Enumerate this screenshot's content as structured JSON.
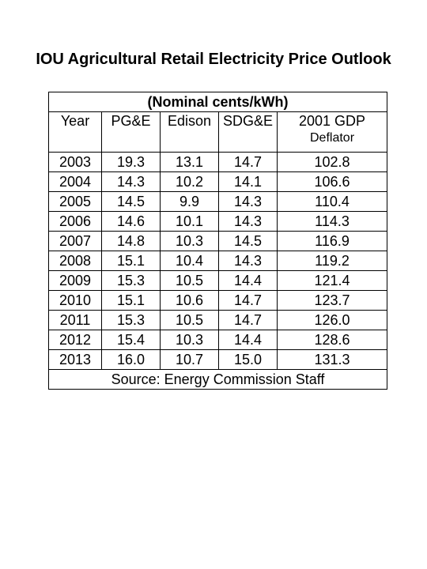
{
  "title": "IOU Agricultural Retail Electricity Price Outlook",
  "table": {
    "units": "(Nominal cents/kWh)",
    "headers": {
      "year": "Year",
      "pge": "PG&E",
      "edison": "Edison",
      "sdge": "SDG&E",
      "deflator_line1": "2001 GDP",
      "deflator_line2": "Deflator"
    },
    "rows": [
      {
        "year": "2003",
        "pge": "19.3",
        "edison": "13.1",
        "sdge": "14.7",
        "deflator": "102.8"
      },
      {
        "year": "2004",
        "pge": "14.3",
        "edison": "10.2",
        "sdge": "14.1",
        "deflator": "106.6"
      },
      {
        "year": "2005",
        "pge": "14.5",
        "edison": "9.9",
        "sdge": "14.3",
        "deflator": "110.4"
      },
      {
        "year": "2006",
        "pge": "14.6",
        "edison": "10.1",
        "sdge": "14.3",
        "deflator": "114.3"
      },
      {
        "year": "2007",
        "pge": "14.8",
        "edison": "10.3",
        "sdge": "14.5",
        "deflator": "116.9"
      },
      {
        "year": "2008",
        "pge": "15.1",
        "edison": "10.4",
        "sdge": "14.3",
        "deflator": "119.2"
      },
      {
        "year": "2009",
        "pge": "15.3",
        "edison": "10.5",
        "sdge": "14.4",
        "deflator": "121.4"
      },
      {
        "year": "2010",
        "pge": "15.1",
        "edison": "10.6",
        "sdge": "14.7",
        "deflator": "123.7"
      },
      {
        "year": "2011",
        "pge": "15.3",
        "edison": "10.5",
        "sdge": "14.7",
        "deflator": "126.0"
      },
      {
        "year": "2012",
        "pge": "15.4",
        "edison": "10.3",
        "sdge": "14.4",
        "deflator": "128.6"
      },
      {
        "year": "2013",
        "pge": "16.0",
        "edison": "10.7",
        "sdge": "15.0",
        "deflator": "131.3"
      }
    ],
    "source": "Source: Energy Commission Staff"
  }
}
